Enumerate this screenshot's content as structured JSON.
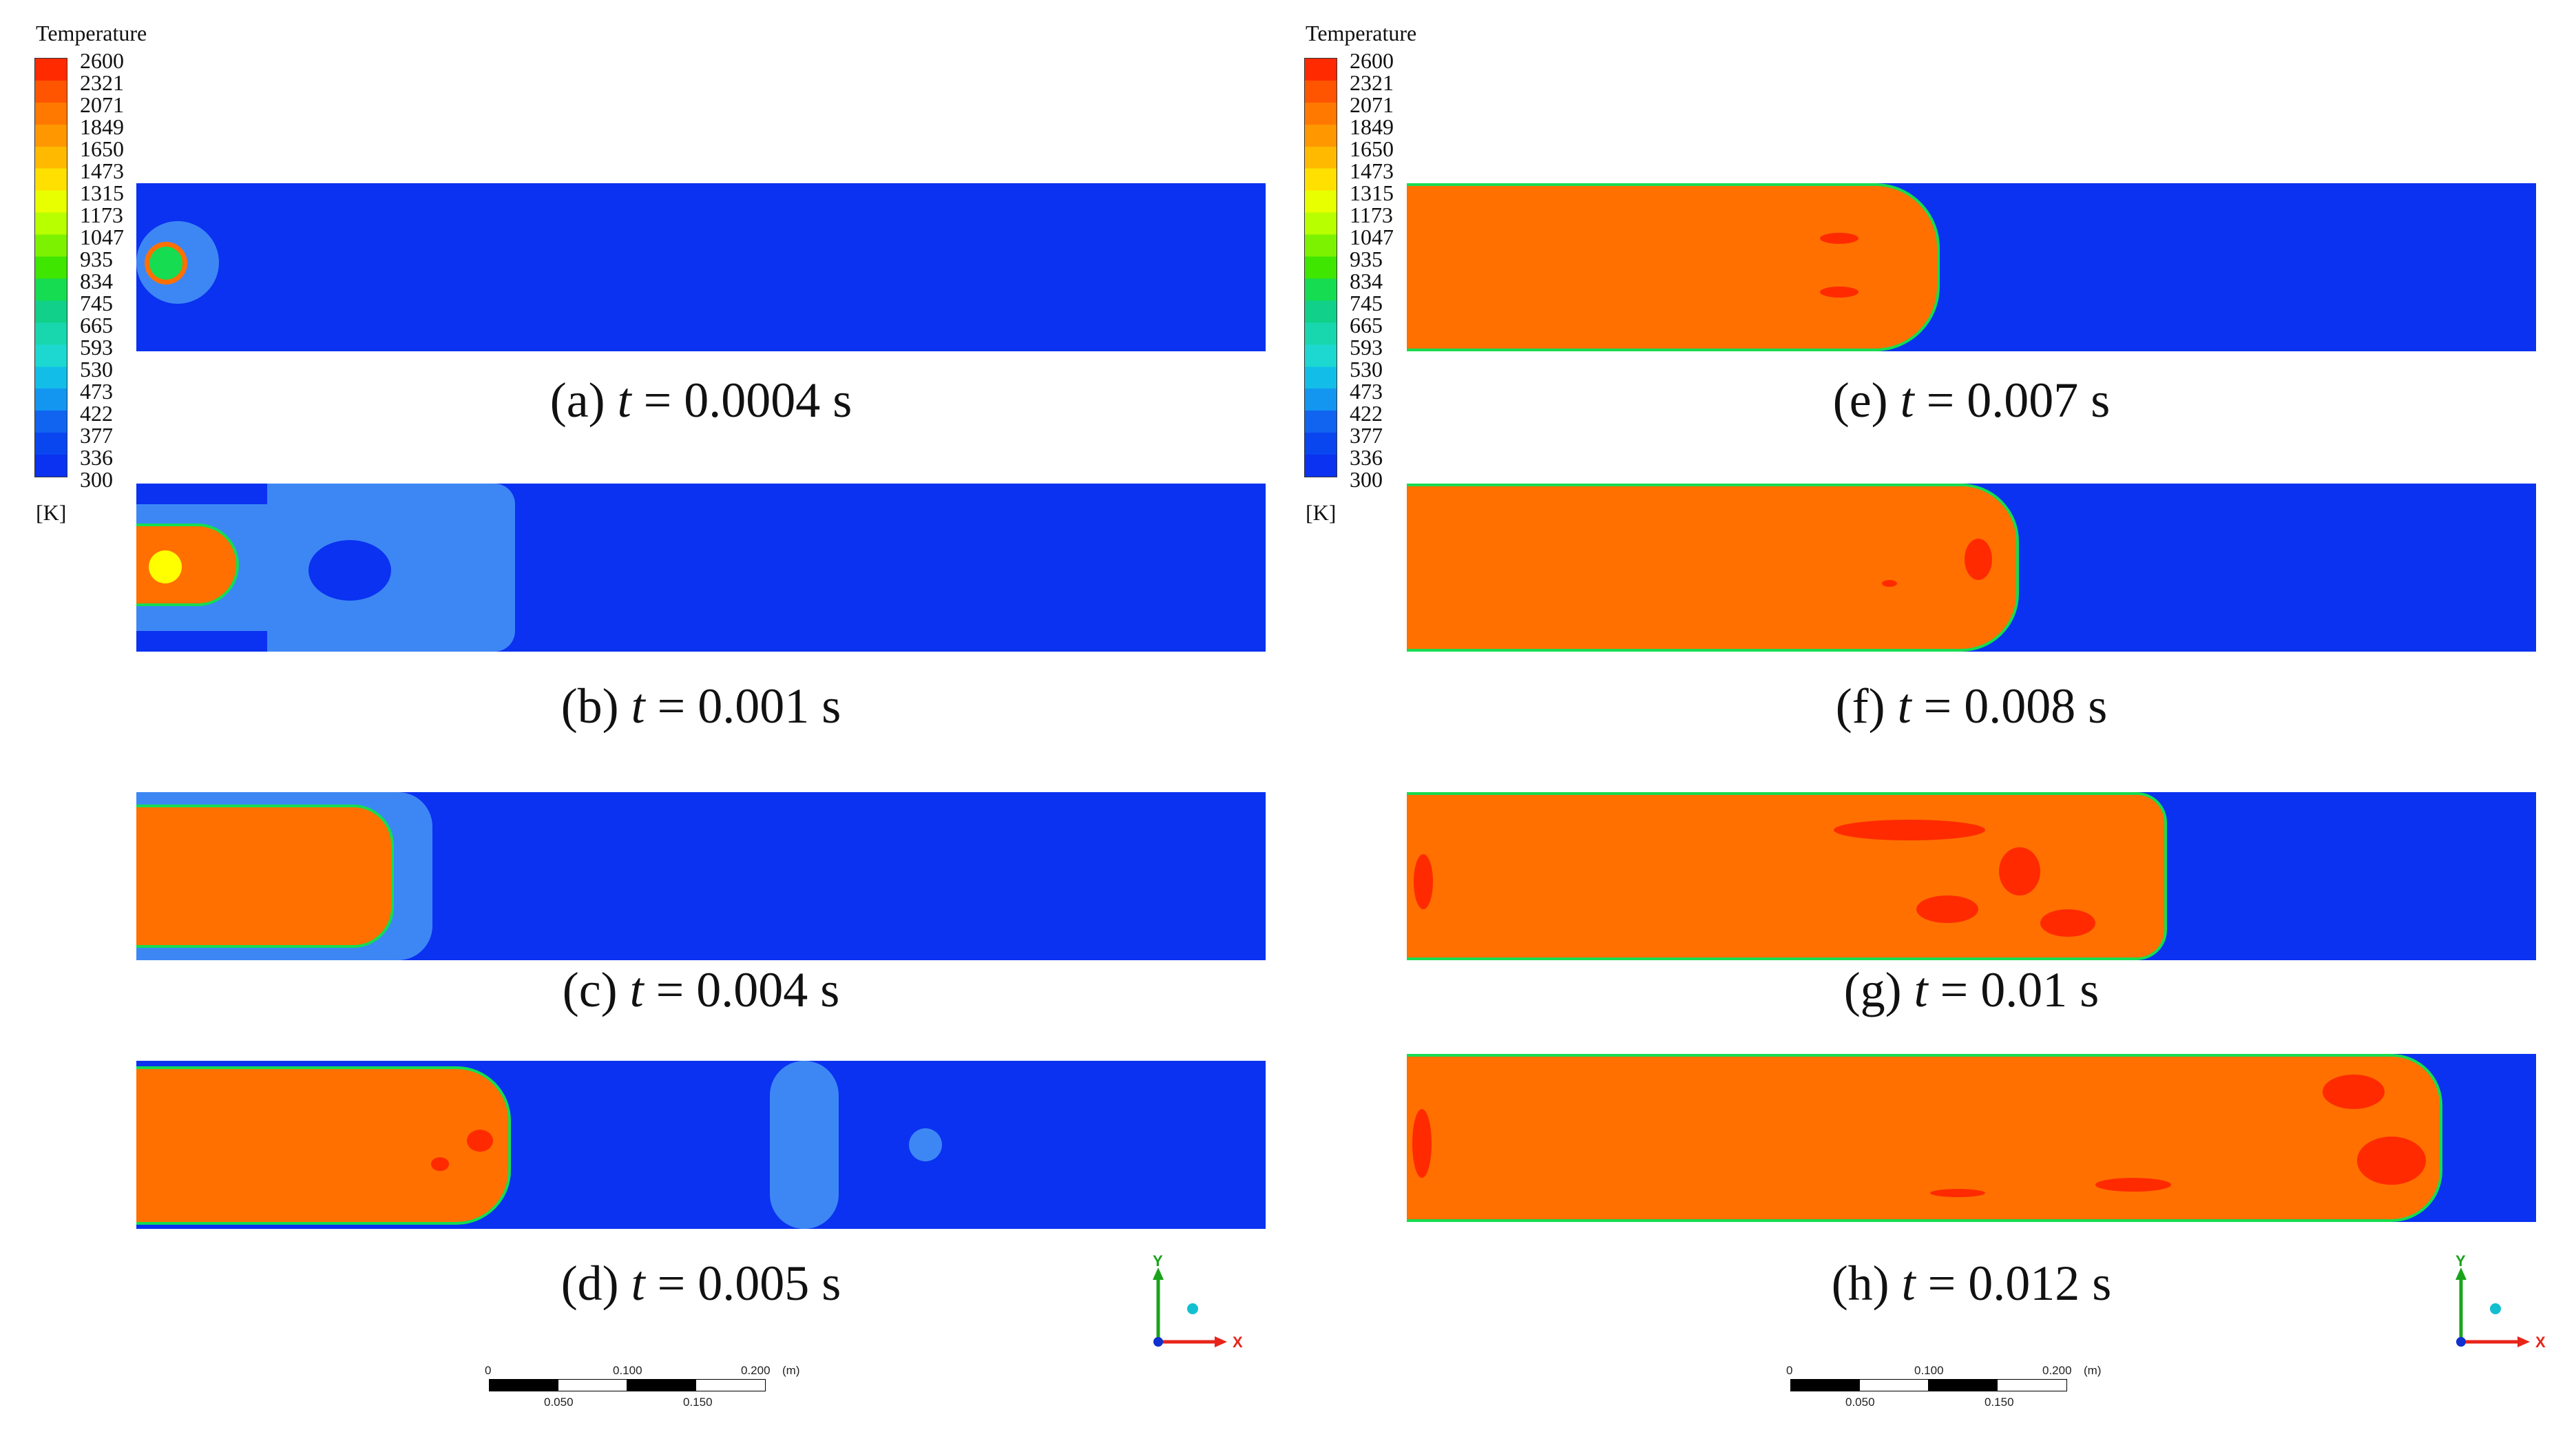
{
  "legend": {
    "title": "Temperature",
    "unit": "[K]",
    "ticks": [
      "2600",
      "2321",
      "2071",
      "1849",
      "1650",
      "1473",
      "1315",
      "1173",
      "1047",
      "935",
      "834",
      "745",
      "665",
      "593",
      "530",
      "473",
      "422",
      "377",
      "336",
      "300"
    ],
    "colors": [
      "#ff2a00",
      "#ff5500",
      "#ff7800",
      "#ff9800",
      "#ffba00",
      "#ffe000",
      "#e8ff00",
      "#b8ff00",
      "#7cf200",
      "#3ee600",
      "#16dc52",
      "#10d08a",
      "#18d6ad",
      "#1cd8d0",
      "#12bee8",
      "#1296f0",
      "#1064f0",
      "#0a46f0",
      "#0a32f0"
    ]
  },
  "colors": {
    "cold": "#0a32f0",
    "lightBlue": "#3d87f5",
    "flame": "#ff7000",
    "hotspot": "#ff2a00",
    "edge": "#16dc52",
    "yellow": "#ffff00",
    "xAxis": "#e8241a",
    "yAxis": "#1aa31a"
  },
  "panels": [
    {
      "id": "a",
      "label": "(a) ",
      "t": "t",
      "rest": " = 0.0004 s"
    },
    {
      "id": "b",
      "label": "(b) ",
      "t": "t",
      "rest": " = 0.001 s"
    },
    {
      "id": "c",
      "label": "(c) ",
      "t": "t",
      "rest": " = 0.004 s"
    },
    {
      "id": "d",
      "label": "(d) ",
      "t": "t",
      "rest": " = 0.005 s"
    },
    {
      "id": "e",
      "label": "(e) ",
      "t": "t",
      "rest": " = 0.007 s"
    },
    {
      "id": "f",
      "label": "(f) ",
      "t": "t",
      "rest": " = 0.008 s"
    },
    {
      "id": "g",
      "label": "(g) ",
      "t": "t",
      "rest": " = 0.01 s"
    },
    {
      "id": "h",
      "label": "(h) ",
      "t": "t",
      "rest": " = 0.012 s"
    }
  ],
  "triad": {
    "y": "Y",
    "x": "X"
  },
  "scale": {
    "top": [
      "0",
      "0.100",
      "0.200",
      "(m)"
    ],
    "bottom": [
      "0.050",
      "0.150"
    ]
  }
}
